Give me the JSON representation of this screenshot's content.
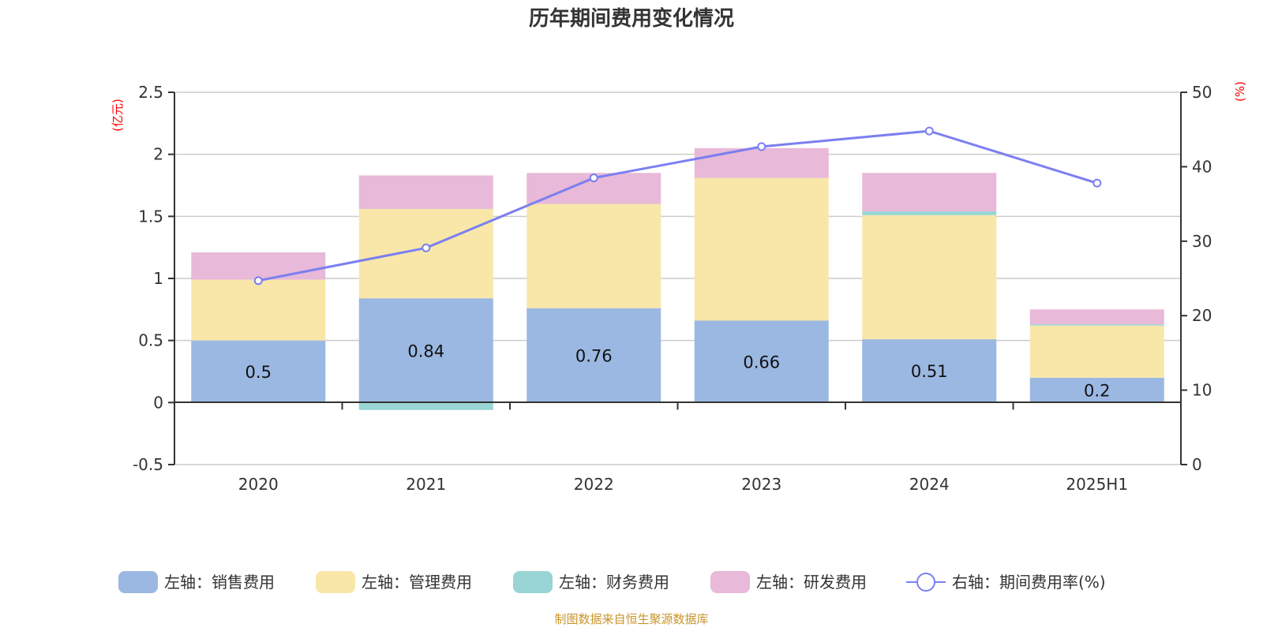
{
  "chart_data": {
    "type": "bar",
    "stacked": true,
    "title": "历年期间费用变化情况",
    "source_note": "制图数据来自恒生聚源数据库",
    "categories": [
      "2020",
      "2021",
      "2022",
      "2023",
      "2024",
      "2025H1"
    ],
    "y_left": {
      "unit_label": "(亿元)",
      "ylim": [
        -0.5,
        2.5
      ],
      "ticks": [
        "-0.5",
        "0",
        "0.5",
        "1",
        "1.5",
        "2",
        "2.5"
      ],
      "tick_values": [
        -0.5,
        0,
        0.5,
        1,
        1.5,
        2,
        2.5
      ]
    },
    "y_right": {
      "unit_label": "(%)",
      "ylim": [
        0,
        50
      ],
      "ticks": [
        "0",
        "10",
        "20",
        "30",
        "40",
        "50"
      ],
      "tick_values": [
        0,
        10,
        20,
        30,
        40,
        50
      ]
    },
    "grid": true,
    "legend_position": "bottom",
    "series": [
      {
        "name": "左轴：销售费用",
        "axis": "left",
        "kind": "bar",
        "color": "#9bb8e2",
        "values": [
          0.5,
          0.84,
          0.76,
          0.66,
          0.51,
          0.2
        ],
        "show_labels": true,
        "labels": [
          "0.5",
          "0.84",
          "0.76",
          "0.66",
          "0.51",
          "0.2"
        ]
      },
      {
        "name": "左轴：管理费用",
        "axis": "left",
        "kind": "bar",
        "color": "#f8e7a9",
        "values": [
          0.49,
          0.72,
          0.84,
          1.15,
          1.0,
          0.42
        ]
      },
      {
        "name": "左轴：财务费用",
        "axis": "left",
        "kind": "bar",
        "color": "#98d5d4",
        "values": [
          0.0,
          -0.06,
          0.0,
          0.0,
          0.03,
          0.01
        ]
      },
      {
        "name": "左轴：研发费用",
        "axis": "left",
        "kind": "bar",
        "color": "#e8b9d8",
        "values": [
          0.22,
          0.27,
          0.25,
          0.24,
          0.31,
          0.12
        ]
      },
      {
        "name": "右轴：期间费用率(%)",
        "axis": "right",
        "kind": "line",
        "color": "#7b7ff0",
        "values": [
          24.7,
          29.1,
          38.5,
          42.7,
          44.8,
          37.8
        ]
      }
    ]
  }
}
